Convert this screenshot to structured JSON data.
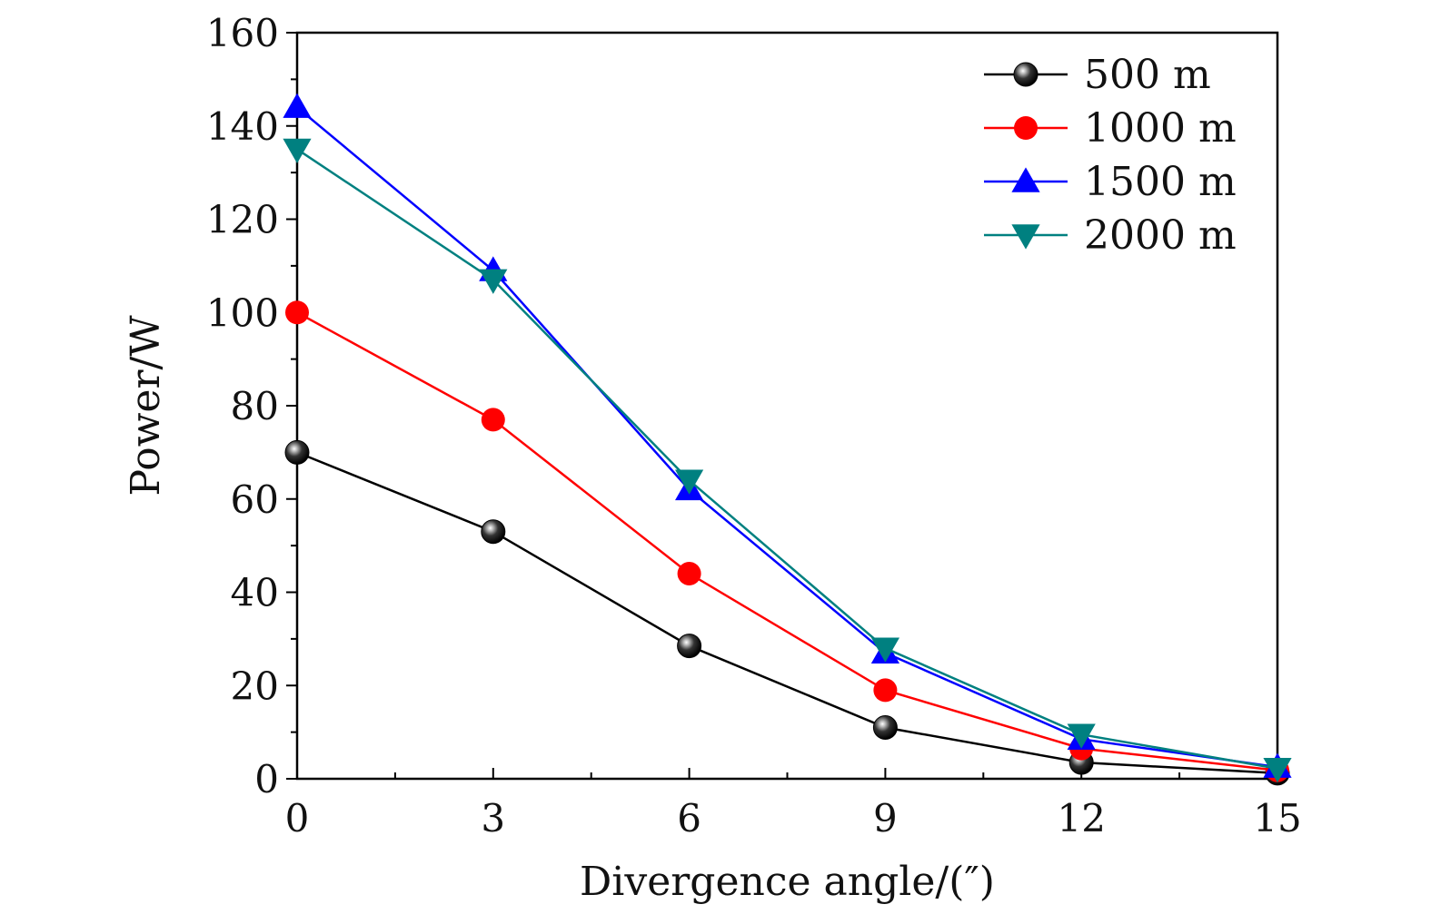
{
  "chart_data": {
    "type": "line",
    "title": "",
    "xlabel": "Divergence angle/(″)",
    "ylabel": "Power/W",
    "x": [
      0,
      3,
      6,
      9,
      12,
      15
    ],
    "xlim": [
      0,
      15
    ],
    "ylim": [
      0,
      160
    ],
    "x_ticks": [
      0,
      3,
      6,
      9,
      12,
      15
    ],
    "y_ticks": [
      0,
      20,
      40,
      60,
      80,
      100,
      120,
      140,
      160
    ],
    "grid": false,
    "legend_position": "top-right",
    "series": [
      {
        "name": "500 m",
        "color": "#000000",
        "marker": "sphere",
        "values": [
          70,
          53,
          28.5,
          11,
          3.5,
          1.2
        ]
      },
      {
        "name": "1000 m",
        "color": "#ff0000",
        "marker": "circle",
        "values": [
          100,
          77,
          44,
          19,
          6.5,
          1.8
        ]
      },
      {
        "name": "1500 m",
        "color": "#0000ff",
        "marker": "triangle-up",
        "values": [
          144,
          109,
          62,
          27,
          8.5,
          2.5
        ]
      },
      {
        "name": "2000 m",
        "color": "#008080",
        "marker": "triangle-down",
        "values": [
          135,
          107,
          64,
          28,
          9.5,
          2.2
        ]
      }
    ]
  }
}
